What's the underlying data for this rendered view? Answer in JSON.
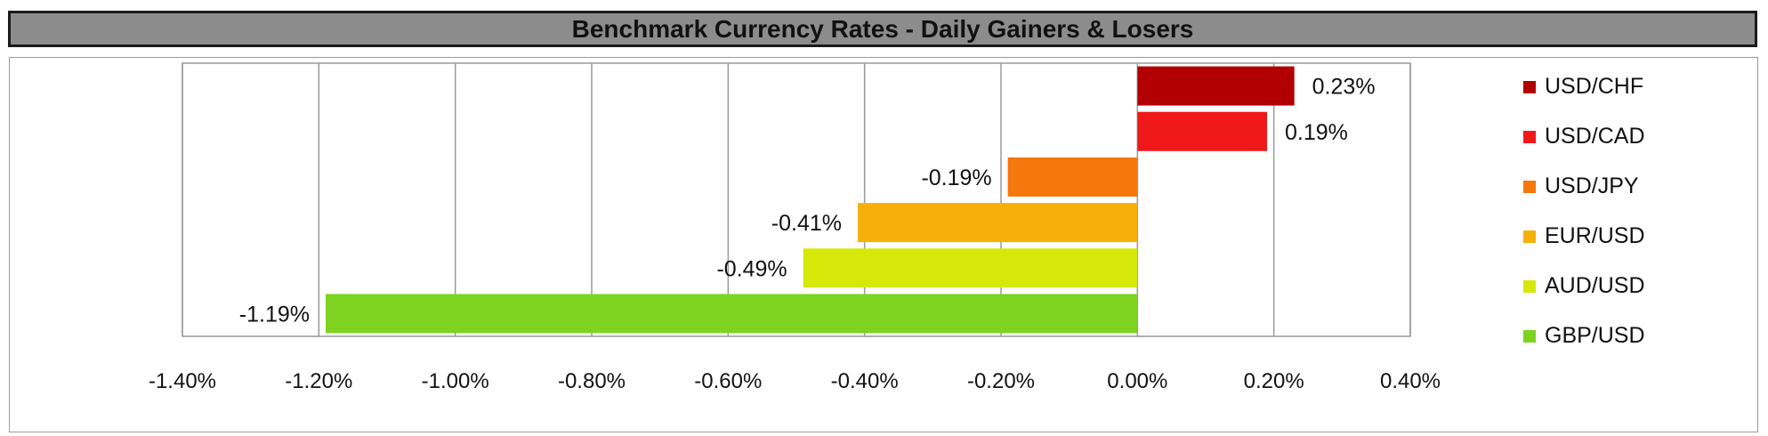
{
  "chart_data": {
    "type": "bar",
    "orientation": "horizontal",
    "title": "Benchmark Currency Rates - Daily Gainers & Losers",
    "categories": [
      "USD/CHF",
      "USD/CAD",
      "USD/JPY",
      "EUR/USD",
      "AUD/USD",
      "GBP/USD"
    ],
    "values": [
      0.23,
      0.19,
      -0.19,
      -0.41,
      -0.49,
      -1.19
    ],
    "data_labels": [
      "0.23%",
      "0.19%",
      "-0.19%",
      "-0.41%",
      "-0.49%",
      "-1.19%"
    ],
    "colors": [
      "#b20000",
      "#f01818",
      "#f4780c",
      "#f5b00a",
      "#d6e80a",
      "#7ed321"
    ],
    "xlim": [
      -1.4,
      0.4
    ],
    "x_ticks": [
      -1.4,
      -1.2,
      -1.0,
      -0.8,
      -0.6,
      -0.4,
      -0.2,
      0.0,
      0.2,
      0.4
    ],
    "x_tick_labels": [
      "-1.40%",
      "-1.20%",
      "-1.00%",
      "-0.80%",
      "-0.60%",
      "-0.40%",
      "-0.20%",
      "0.00%",
      "0.20%",
      "0.40%"
    ],
    "xlabel": "",
    "ylabel": "",
    "grid": "vertical",
    "legend": "right"
  }
}
